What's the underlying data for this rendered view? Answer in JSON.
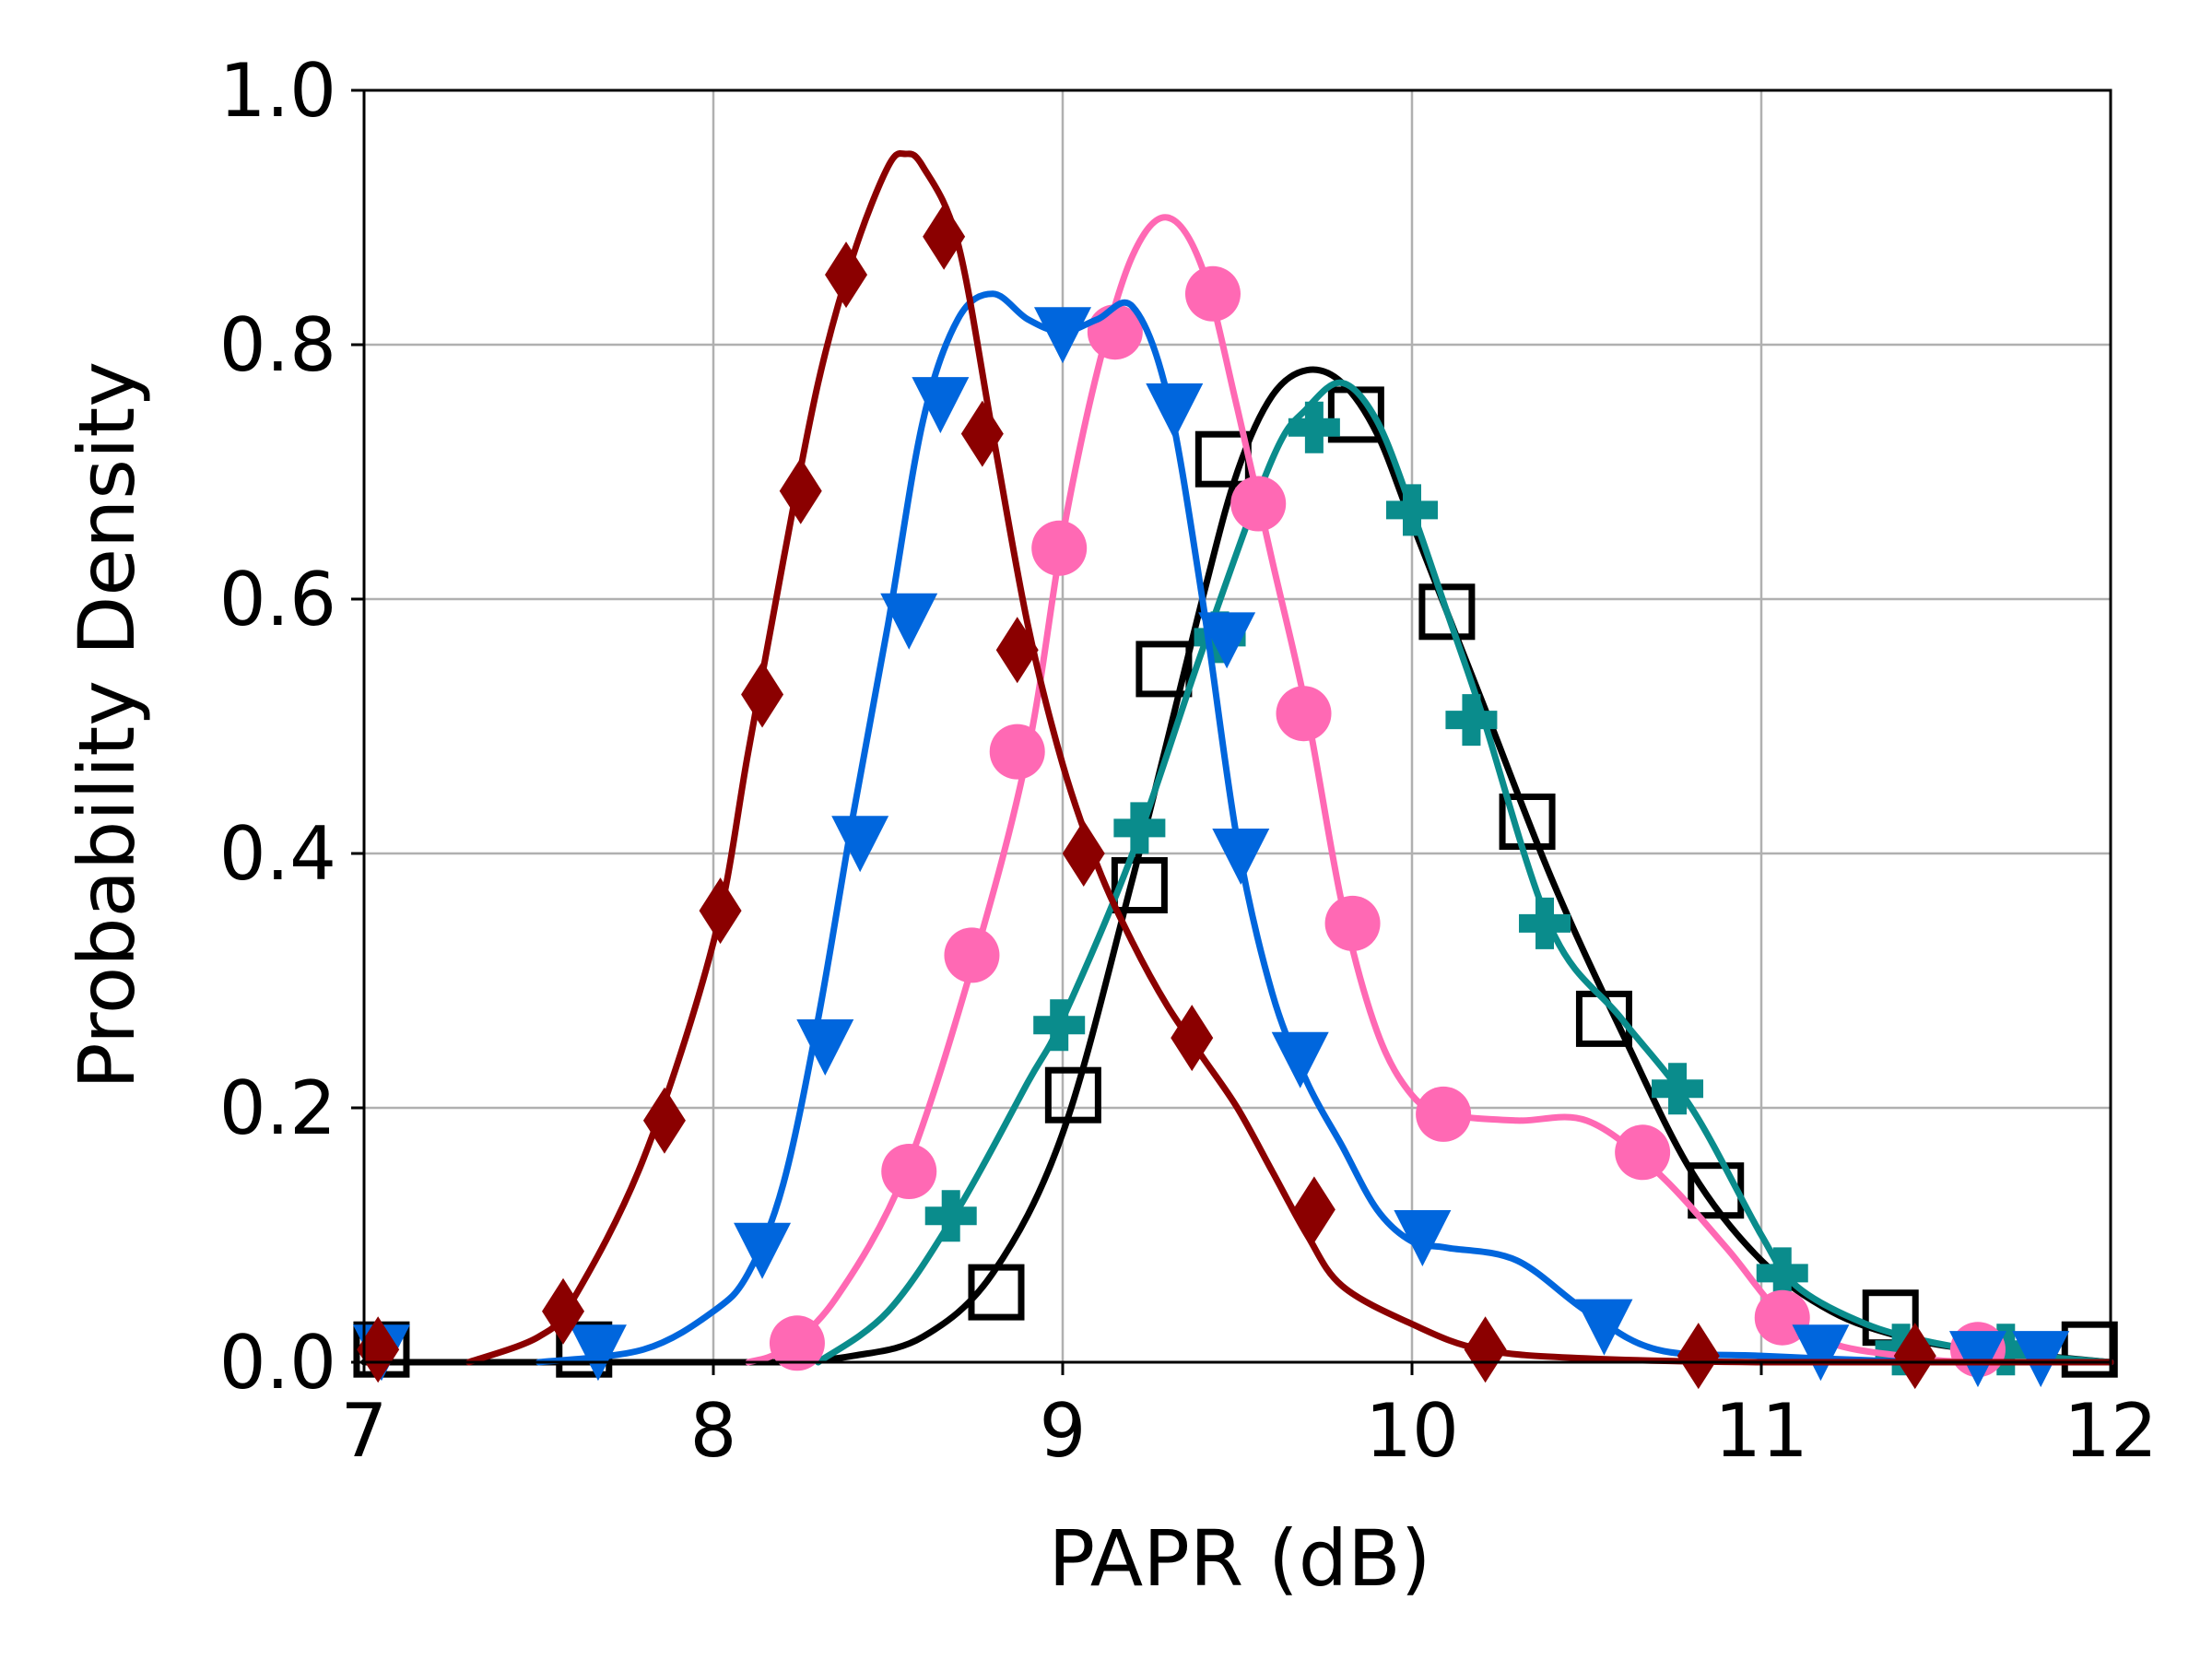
{
  "chart_data": {
    "type": "line",
    "title": "",
    "xlabel": "PAPR (dB)",
    "ylabel": "Probability Density",
    "xlim": [
      7,
      12
    ],
    "ylim": [
      0,
      1.0
    ],
    "x_ticks": [
      7,
      8,
      9,
      10,
      11,
      12
    ],
    "x_tick_labels": [
      "7",
      "8",
      "9",
      "10",
      "11",
      "12"
    ],
    "y_ticks": [
      0.0,
      0.2,
      0.4,
      0.6,
      0.8,
      1.0
    ],
    "y_tick_labels": [
      "0.0",
      "0.2",
      "0.4",
      "0.6",
      "0.8",
      "1.0"
    ],
    "grid": true,
    "series": [
      {
        "color": "#000000",
        "marker": "square-open",
        "curve": [
          [
            7.0,
            0.0
          ],
          [
            8.0,
            0.0
          ],
          [
            8.2,
            0.0
          ],
          [
            8.4,
            0.005
          ],
          [
            8.6,
            0.02
          ],
          [
            8.8,
            0.07
          ],
          [
            9.0,
            0.18
          ],
          [
            9.2,
            0.38
          ],
          [
            9.4,
            0.6
          ],
          [
            9.5,
            0.7
          ],
          [
            9.6,
            0.76
          ],
          [
            9.7,
            0.78
          ],
          [
            9.8,
            0.77
          ],
          [
            9.9,
            0.73
          ],
          [
            10.0,
            0.66
          ],
          [
            10.2,
            0.52
          ],
          [
            10.4,
            0.38
          ],
          [
            10.6,
            0.26
          ],
          [
            10.8,
            0.15
          ],
          [
            11.0,
            0.08
          ],
          [
            11.2,
            0.04
          ],
          [
            11.4,
            0.02
          ],
          [
            11.6,
            0.01
          ],
          [
            11.8,
            0.005
          ],
          [
            12.0,
            0.0
          ]
        ],
        "markers": [
          [
            7.05,
            0.01
          ],
          [
            7.63,
            0.01
          ],
          [
            8.81,
            0.055
          ],
          [
            9.03,
            0.21
          ],
          [
            9.22,
            0.375
          ],
          [
            9.29,
            0.545
          ],
          [
            9.46,
            0.71
          ],
          [
            9.84,
            0.745
          ],
          [
            10.1,
            0.59
          ],
          [
            10.33,
            0.425
          ],
          [
            10.55,
            0.27
          ],
          [
            10.87,
            0.135
          ],
          [
            11.37,
            0.035
          ],
          [
            11.94,
            0.01
          ]
        ]
      },
      {
        "color": "#0a8c8c",
        "marker": "plus-filled",
        "curve": [
          [
            8.3,
            0.0
          ],
          [
            8.5,
            0.04
          ],
          [
            8.7,
            0.12
          ],
          [
            8.9,
            0.22
          ],
          [
            9.0,
            0.27
          ],
          [
            9.2,
            0.4
          ],
          [
            9.4,
            0.56
          ],
          [
            9.6,
            0.71
          ],
          [
            9.7,
            0.75
          ],
          [
            9.8,
            0.77
          ],
          [
            9.9,
            0.74
          ],
          [
            10.0,
            0.67
          ],
          [
            10.1,
            0.59
          ],
          [
            10.2,
            0.51
          ],
          [
            10.4,
            0.34
          ],
          [
            10.6,
            0.27
          ],
          [
            10.8,
            0.2
          ],
          [
            11.0,
            0.1
          ],
          [
            11.1,
            0.06
          ],
          [
            11.3,
            0.03
          ],
          [
            11.5,
            0.015
          ],
          [
            11.7,
            0.007
          ],
          [
            12.0,
            0.0
          ]
        ],
        "markers": [
          [
            8.68,
            0.115
          ],
          [
            8.99,
            0.265
          ],
          [
            9.22,
            0.42
          ],
          [
            9.45,
            0.57
          ],
          [
            9.72,
            0.735
          ],
          [
            10.0,
            0.67
          ],
          [
            10.17,
            0.505
          ],
          [
            10.38,
            0.345
          ],
          [
            10.76,
            0.215
          ],
          [
            11.06,
            0.07
          ],
          [
            11.4,
            0.01
          ],
          [
            11.7,
            0.01
          ]
        ]
      },
      {
        "color": "#ff69b4",
        "marker": "circle-filled",
        "curve": [
          [
            8.1,
            0.0
          ],
          [
            8.2,
            0.01
          ],
          [
            8.35,
            0.05
          ],
          [
            8.55,
            0.15
          ],
          [
            8.75,
            0.32
          ],
          [
            8.9,
            0.48
          ],
          [
            9.0,
            0.65
          ],
          [
            9.1,
            0.78
          ],
          [
            9.2,
            0.87
          ],
          [
            9.3,
            0.9
          ],
          [
            9.4,
            0.86
          ],
          [
            9.5,
            0.75
          ],
          [
            9.6,
            0.63
          ],
          [
            9.7,
            0.51
          ],
          [
            9.8,
            0.36
          ],
          [
            9.9,
            0.26
          ],
          [
            10.0,
            0.21
          ],
          [
            10.1,
            0.195
          ],
          [
            10.3,
            0.19
          ],
          [
            10.5,
            0.19
          ],
          [
            10.7,
            0.15
          ],
          [
            10.9,
            0.09
          ],
          [
            11.05,
            0.04
          ],
          [
            11.2,
            0.015
          ],
          [
            11.4,
            0.005
          ],
          [
            11.6,
            0.0
          ],
          [
            12.0,
            0.0
          ]
        ],
        "markers": [
          [
            8.24,
            0.015
          ],
          [
            8.56,
            0.15
          ],
          [
            8.74,
            0.32
          ],
          [
            8.87,
            0.48
          ],
          [
            8.99,
            0.64
          ],
          [
            9.15,
            0.81
          ],
          [
            9.43,
            0.84
          ],
          [
            9.56,
            0.675
          ],
          [
            9.69,
            0.51
          ],
          [
            9.83,
            0.345
          ],
          [
            10.09,
            0.195
          ],
          [
            10.66,
            0.165
          ],
          [
            11.06,
            0.035
          ],
          [
            11.62,
            0.01
          ]
        ]
      },
      {
        "color": "#0066dd",
        "marker": "triangle-down-filled",
        "curve": [
          [
            7.5,
            0.0
          ],
          [
            7.8,
            0.01
          ],
          [
            8.0,
            0.04
          ],
          [
            8.1,
            0.07
          ],
          [
            8.2,
            0.14
          ],
          [
            8.3,
            0.27
          ],
          [
            8.4,
            0.43
          ],
          [
            8.5,
            0.58
          ],
          [
            8.6,
            0.74
          ],
          [
            8.7,
            0.82
          ],
          [
            8.8,
            0.84
          ],
          [
            8.9,
            0.82
          ],
          [
            9.0,
            0.81
          ],
          [
            9.1,
            0.82
          ],
          [
            9.2,
            0.83
          ],
          [
            9.3,
            0.76
          ],
          [
            9.4,
            0.6
          ],
          [
            9.5,
            0.41
          ],
          [
            9.6,
            0.29
          ],
          [
            9.7,
            0.22
          ],
          [
            9.8,
            0.17
          ],
          [
            9.9,
            0.12
          ],
          [
            10.0,
            0.095
          ],
          [
            10.1,
            0.09
          ],
          [
            10.3,
            0.08
          ],
          [
            10.5,
            0.04
          ],
          [
            10.7,
            0.01
          ],
          [
            11.0,
            0.005
          ],
          [
            11.5,
            0.0
          ],
          [
            12.0,
            0.0
          ]
        ],
        "markers": [
          [
            7.05,
            0.01
          ],
          [
            7.67,
            0.01
          ],
          [
            8.14,
            0.09
          ],
          [
            8.32,
            0.25
          ],
          [
            8.42,
            0.41
          ],
          [
            8.56,
            0.585
          ],
          [
            8.65,
            0.755
          ],
          [
            9.0,
            0.81
          ],
          [
            9.32,
            0.75
          ],
          [
            9.47,
            0.57
          ],
          [
            9.51,
            0.4
          ],
          [
            9.68,
            0.24
          ],
          [
            10.03,
            0.1
          ],
          [
            10.55,
            0.03
          ],
          [
            11.17,
            0.01
          ],
          [
            11.62,
            0.005
          ],
          [
            11.8,
            0.005
          ]
        ]
      },
      {
        "color": "#8b0000",
        "marker": "diamond-filled",
        "curve": [
          [
            7.3,
            0.0
          ],
          [
            7.5,
            0.02
          ],
          [
            7.6,
            0.05
          ],
          [
            7.8,
            0.16
          ],
          [
            8.0,
            0.33
          ],
          [
            8.1,
            0.48
          ],
          [
            8.2,
            0.63
          ],
          [
            8.3,
            0.77
          ],
          [
            8.4,
            0.87
          ],
          [
            8.5,
            0.94
          ],
          [
            8.55,
            0.95
          ],
          [
            8.6,
            0.94
          ],
          [
            8.7,
            0.88
          ],
          [
            8.8,
            0.73
          ],
          [
            8.9,
            0.58
          ],
          [
            9.0,
            0.47
          ],
          [
            9.1,
            0.39
          ],
          [
            9.2,
            0.33
          ],
          [
            9.3,
            0.28
          ],
          [
            9.4,
            0.24
          ],
          [
            9.5,
            0.2
          ],
          [
            9.6,
            0.15
          ],
          [
            9.7,
            0.1
          ],
          [
            9.8,
            0.06
          ],
          [
            10.0,
            0.03
          ],
          [
            10.2,
            0.01
          ],
          [
            10.5,
            0.003
          ],
          [
            11.0,
            0.0
          ],
          [
            12.0,
            0.0
          ]
        ],
        "markers": [
          [
            7.04,
            0.01
          ],
          [
            7.57,
            0.04
          ],
          [
            7.86,
            0.19
          ],
          [
            8.02,
            0.355
          ],
          [
            8.14,
            0.525
          ],
          [
            8.25,
            0.685
          ],
          [
            8.38,
            0.855
          ],
          [
            8.66,
            0.885
          ],
          [
            8.77,
            0.73
          ],
          [
            8.87,
            0.56
          ],
          [
            9.06,
            0.4
          ],
          [
            9.37,
            0.255
          ],
          [
            9.72,
            0.12
          ],
          [
            10.21,
            0.01
          ],
          [
            10.82,
            0.005
          ],
          [
            11.44,
            0.005
          ]
        ]
      }
    ]
  }
}
